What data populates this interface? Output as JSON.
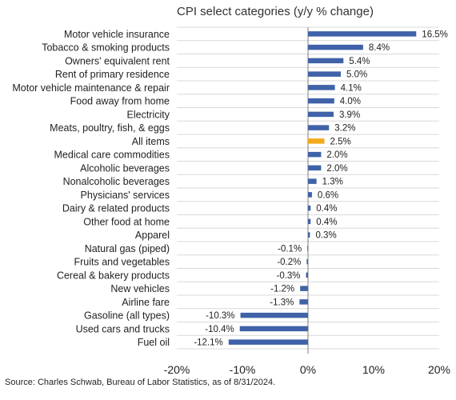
{
  "chart_data": {
    "type": "bar",
    "orientation": "horizontal",
    "title": "CPI select categories (y/y % change)",
    "xlabel": "",
    "ylabel": "",
    "xlim": [
      -20,
      20
    ],
    "xticks": [
      -20,
      -10,
      0,
      10,
      20
    ],
    "xtick_labels": [
      "-20%",
      "-10%",
      "0%",
      "10%",
      "20%"
    ],
    "grid": "horizontal gridlines between categories",
    "colors": {
      "default": "#3f62a8",
      "highlight": "#f2aa1c",
      "grid": "#d9d9d9",
      "axis": "#7f7f7f"
    },
    "highlight_category": "All items",
    "categories": [
      "Motor vehicle insurance",
      "Tobacco & smoking products",
      "Owners' equivalent rent",
      "Rent of primary residence",
      "Motor vehicle maintenance & repair",
      "Food away from home",
      "Electricity",
      "Meats, poultry, fish, & eggs",
      "All items",
      "Medical care commodities",
      "Alcoholic beverages",
      "Nonalcoholic beverages",
      "Physicians' services",
      "Dairy & related products",
      "Other food at home",
      "Apparel",
      "Natural gas (piped)",
      "Fruits and vegetables",
      "Cereal & bakery products",
      "New vehicles",
      "Airline fare",
      "Gasoline (all types)",
      "Used cars and trucks",
      "Fuel oil"
    ],
    "values": [
      16.5,
      8.4,
      5.4,
      5.0,
      4.1,
      4.0,
      3.9,
      3.2,
      2.5,
      2.0,
      2.0,
      1.3,
      0.6,
      0.4,
      0.4,
      0.3,
      -0.1,
      -0.2,
      -0.3,
      -1.2,
      -1.3,
      -10.3,
      -10.4,
      -12.1
    ],
    "value_labels": [
      "16.5%",
      "8.4%",
      "5.4%",
      "5.0%",
      "4.1%",
      "4.0%",
      "3.9%",
      "3.2%",
      "2.5%",
      "2.0%",
      "2.0%",
      "1.3%",
      "0.6%",
      "0.4%",
      "0.4%",
      "0.3%",
      "-0.1%",
      "-0.2%",
      "-0.3%",
      "-1.2%",
      "-1.3%",
      "-10.3%",
      "-10.4%",
      "-12.1%"
    ]
  },
  "footer": {
    "source": "Source: Charles Schwab, Bureau of Labor Statistics, as of 8/31/2024."
  }
}
